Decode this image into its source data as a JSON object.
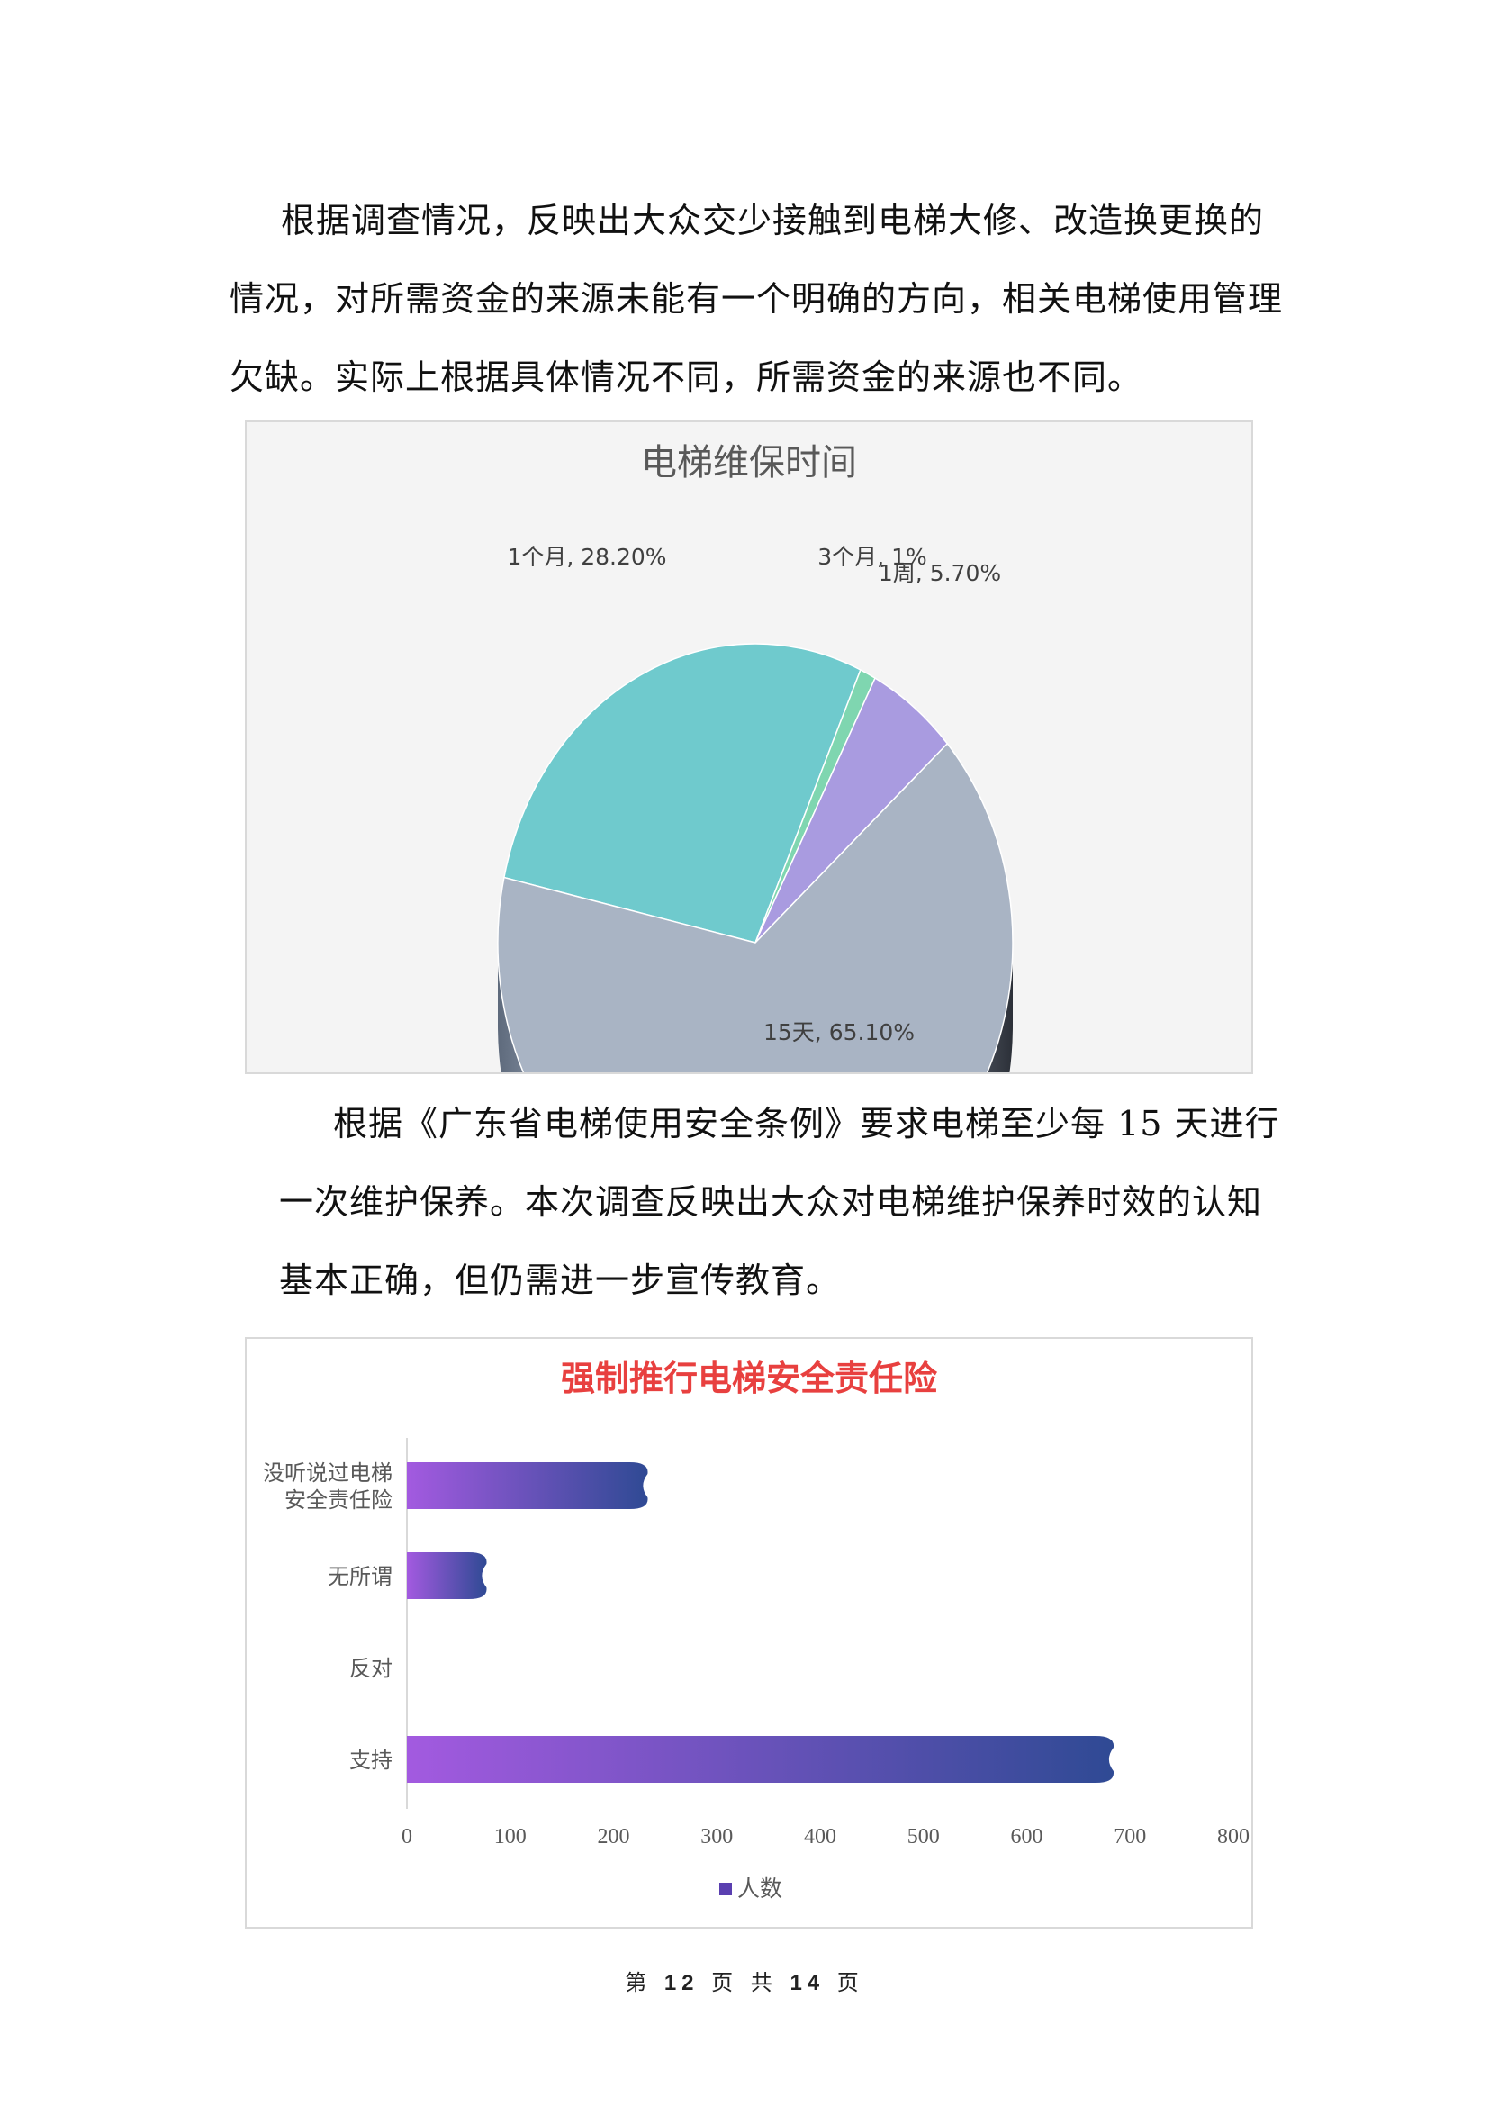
{
  "paragraph1": [
    "根据调查情况，反映出大众交少接触到电梯大修、改造换更换的",
    "情况，对所需资金的来源未能有一个明确的方向，相关电梯使用管理",
    "欠缺。实际上根据具体情况不同，所需资金的来源也不同。"
  ],
  "paragraph2": [
    "根据《广东省电梯使用安全条例》要求电梯至少每 15 天进行",
    "一次维护保养。本次调查反映出大众对电梯维护保养时效的认知",
    "基本正确，但仍需进一步宣传教育。"
  ],
  "footer": {
    "prefix": "第",
    "page": "12",
    "mid": "页 共",
    "total": "14",
    "suffix": "页"
  },
  "chart_data": [
    {
      "type": "pie",
      "style": "3d",
      "title": "电梯维保时间",
      "slices": [
        {
          "label": "1个月",
          "value": 28.2,
          "data_label": "1个月, 28.20%",
          "color": "#6fcacd"
        },
        {
          "label": "3个月",
          "value": 1,
          "data_label": "3个月, 1%",
          "color": "#7fd6b0"
        },
        {
          "label": "1周",
          "value": 5.7,
          "data_label": "1周, 5.70%",
          "color": "#a99be0"
        },
        {
          "label": "15天",
          "value": 65.1,
          "data_label": "15天, 65.10%",
          "color": "#a9b4c4"
        }
      ]
    },
    {
      "type": "bar",
      "orientation": "horizontal",
      "title": "强制推行电梯安全责任险",
      "title_color": "#e8403f",
      "categories": [
        "没听说过电梯安全责任险",
        "无所谓",
        "反对",
        "支持"
      ],
      "category_lines": [
        [
          "没听说过电梯",
          "安全责任险"
        ],
        [
          "无所谓"
        ],
        [
          "反对"
        ],
        [
          "支持"
        ]
      ],
      "series": [
        {
          "name": "人数",
          "values": [
            233,
            77,
            0,
            684
          ],
          "gradient": [
            "#a35ae0",
            "#2f4a94"
          ]
        }
      ],
      "xlim": [
        0,
        800
      ],
      "xticks": [
        "0",
        "100",
        "200",
        "300",
        "400",
        "500",
        "600",
        "700",
        "800"
      ],
      "grid": false,
      "legend": "bottom"
    }
  ]
}
